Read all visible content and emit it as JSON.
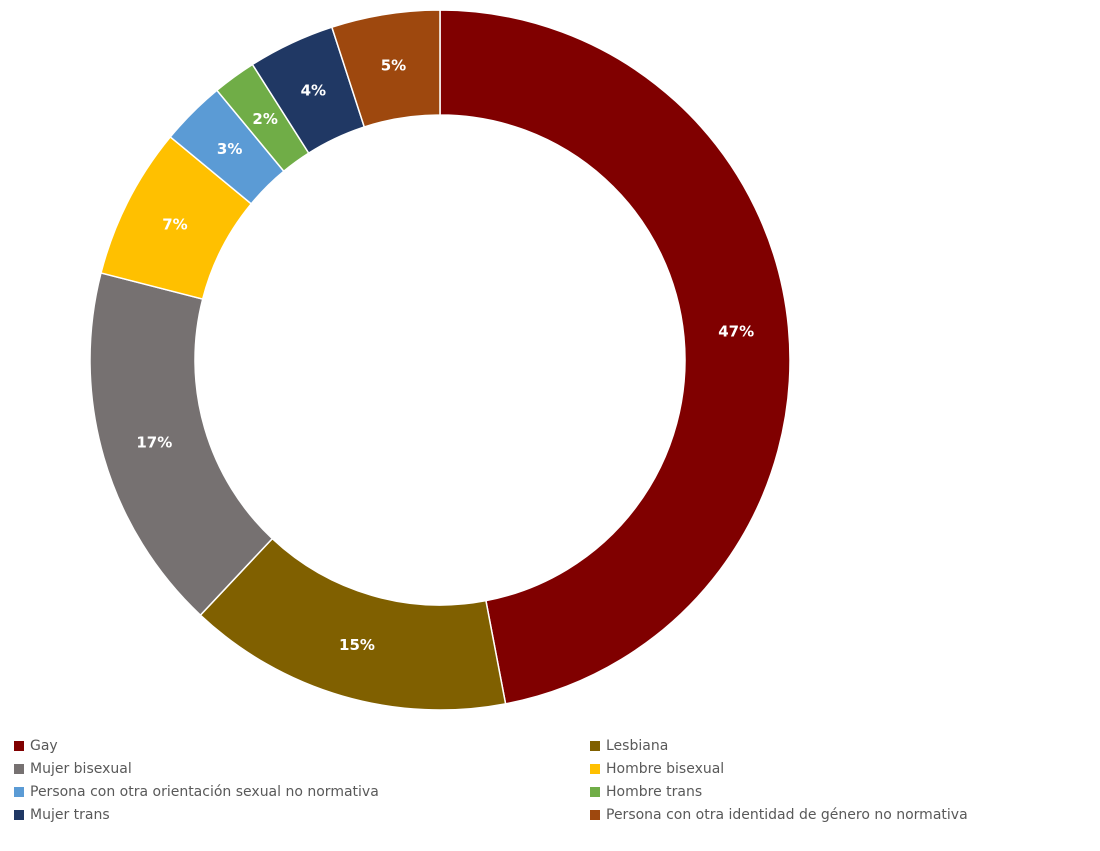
{
  "chart_data": {
    "type": "pie",
    "variant": "donut",
    "title": "",
    "categories": [
      "Gay",
      "Lesbiana",
      "Mujer bisexual",
      "Hombre bisexual",
      "Persona con otra orientación sexual no normativa",
      "Hombre trans",
      "Mujer trans",
      "Persona con otra identidad de género no normativa"
    ],
    "values": [
      47,
      15,
      17,
      7,
      3,
      2,
      4,
      5
    ],
    "labels": [
      "47%",
      "15%",
      "17%",
      "7%",
      "3%",
      "2%",
      "4%",
      "5%"
    ],
    "colors": [
      "#800000",
      "#806000",
      "#767171",
      "#FFC000",
      "#5B9BD5",
      "#70AD47",
      "#203864",
      "#9E480E"
    ],
    "unit": "%",
    "start_angle": "12 o'clock",
    "direction": "clockwise",
    "legend_position": "bottom",
    "legend_columns": 2
  }
}
